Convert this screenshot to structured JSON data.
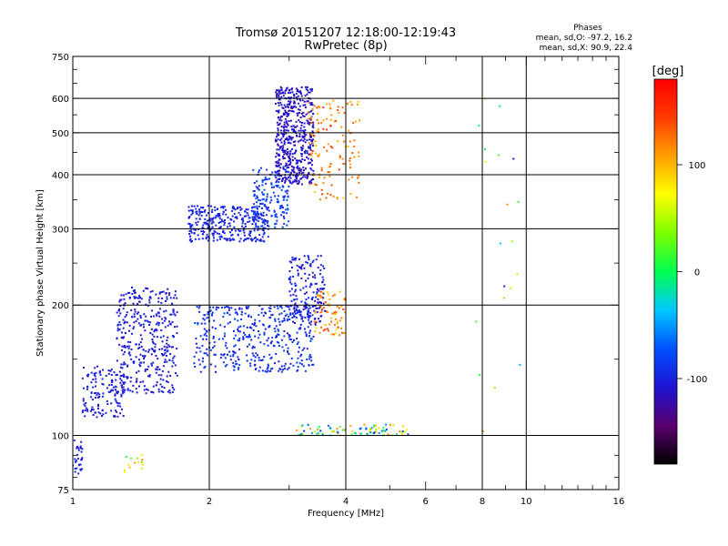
{
  "header": {
    "title_line1": "Tromsø 20151207 12:18:00-12:19:43",
    "title_line2": "RwPretec (8p)"
  },
  "stats": {
    "heading": "Phases",
    "line1": "mean, sd,O: -97.2, 16.2",
    "line2": "mean, sd,X:  90.9, 22.4"
  },
  "colorbar": {
    "label": "[deg]",
    "ticks": [
      "100",
      "0",
      "-100"
    ],
    "tick_values": [
      100,
      0,
      -100
    ],
    "range": [
      -180,
      180
    ],
    "colors": [
      "#000000",
      "#5a006e",
      "#1e14d2",
      "#0050ff",
      "#00c8ff",
      "#00ff50",
      "#7dff00",
      "#ffff00",
      "#ffa000",
      "#ff3c00",
      "#ff0000"
    ]
  },
  "chart_data": {
    "type": "scatter",
    "title": "Tromsø 20151207 12:18:00-12:19:43",
    "subtitle": "RwPretec (8p)",
    "xlabel": "Frequency [MHz]",
    "ylabel": "Stationary phase Virtual Height [km]",
    "xscale": "log",
    "yscale": "log",
    "xlim": [
      1,
      16
    ],
    "ylim": [
      75,
      750
    ],
    "xticks": [
      1,
      2,
      4,
      6,
      8,
      10,
      16
    ],
    "xtick_labels": [
      "1",
      "2",
      "4",
      "6",
      "8",
      "10",
      "16"
    ],
    "yticks": [
      75,
      100,
      200,
      300,
      400,
      500,
      600,
      750
    ],
    "ytick_labels": [
      "75",
      "100",
      "200",
      "300",
      "400",
      "500",
      "600",
      "750"
    ],
    "grid_x": [
      2,
      4,
      8,
      10
    ],
    "grid_y": [
      100,
      200,
      300,
      400,
      500,
      600
    ],
    "color_by": "phase_deg",
    "clusters": [
      {
        "f": [
          1.0,
          1.05
        ],
        "h": [
          80,
          100
        ],
        "phase": [
          -110,
          -90
        ],
        "n": 30
      },
      {
        "f": [
          1.3,
          1.45
        ],
        "h": [
          80,
          90
        ],
        "phase": [
          0,
          120
        ],
        "n": 14
      },
      {
        "f": [
          1.05,
          1.3
        ],
        "h": [
          110,
          145
        ],
        "phase": [
          -110,
          -95
        ],
        "n": 140
      },
      {
        "f": [
          1.25,
          1.7
        ],
        "h": [
          125,
          220
        ],
        "phase": [
          -115,
          -95
        ],
        "n": 380
      },
      {
        "f": [
          1.85,
          3.4
        ],
        "h": [
          140,
          200
        ],
        "phase": [
          -110,
          -75
        ],
        "n": 420
      },
      {
        "f": [
          3.0,
          3.6
        ],
        "h": [
          180,
          260
        ],
        "phase": [
          -120,
          -90
        ],
        "n": 180
      },
      {
        "f": [
          3.4,
          4.0
        ],
        "h": [
          170,
          215
        ],
        "phase": [
          80,
          150
        ],
        "n": 70
      },
      {
        "f": [
          3.1,
          5.5
        ],
        "h": [
          100,
          106
        ],
        "phase": [
          -100,
          130
        ],
        "n": 90
      },
      {
        "f": [
          1.8,
          2.7
        ],
        "h": [
          280,
          340
        ],
        "phase": [
          -110,
          -90
        ],
        "n": 320
      },
      {
        "f": [
          2.5,
          3.0
        ],
        "h": [
          300,
          420
        ],
        "phase": [
          -100,
          -70
        ],
        "n": 160
      },
      {
        "f": [
          2.8,
          3.4
        ],
        "h": [
          380,
          640
        ],
        "phase": [
          -125,
          -100
        ],
        "n": 520
      },
      {
        "f": [
          3.3,
          4.3
        ],
        "h": [
          350,
          600
        ],
        "phase": [
          90,
          150
        ],
        "n": 130
      },
      {
        "f": [
          7.5,
          10.5
        ],
        "h": [
          100,
          650
        ],
        "phase": [
          -110,
          140
        ],
        "n": 20
      }
    ]
  }
}
